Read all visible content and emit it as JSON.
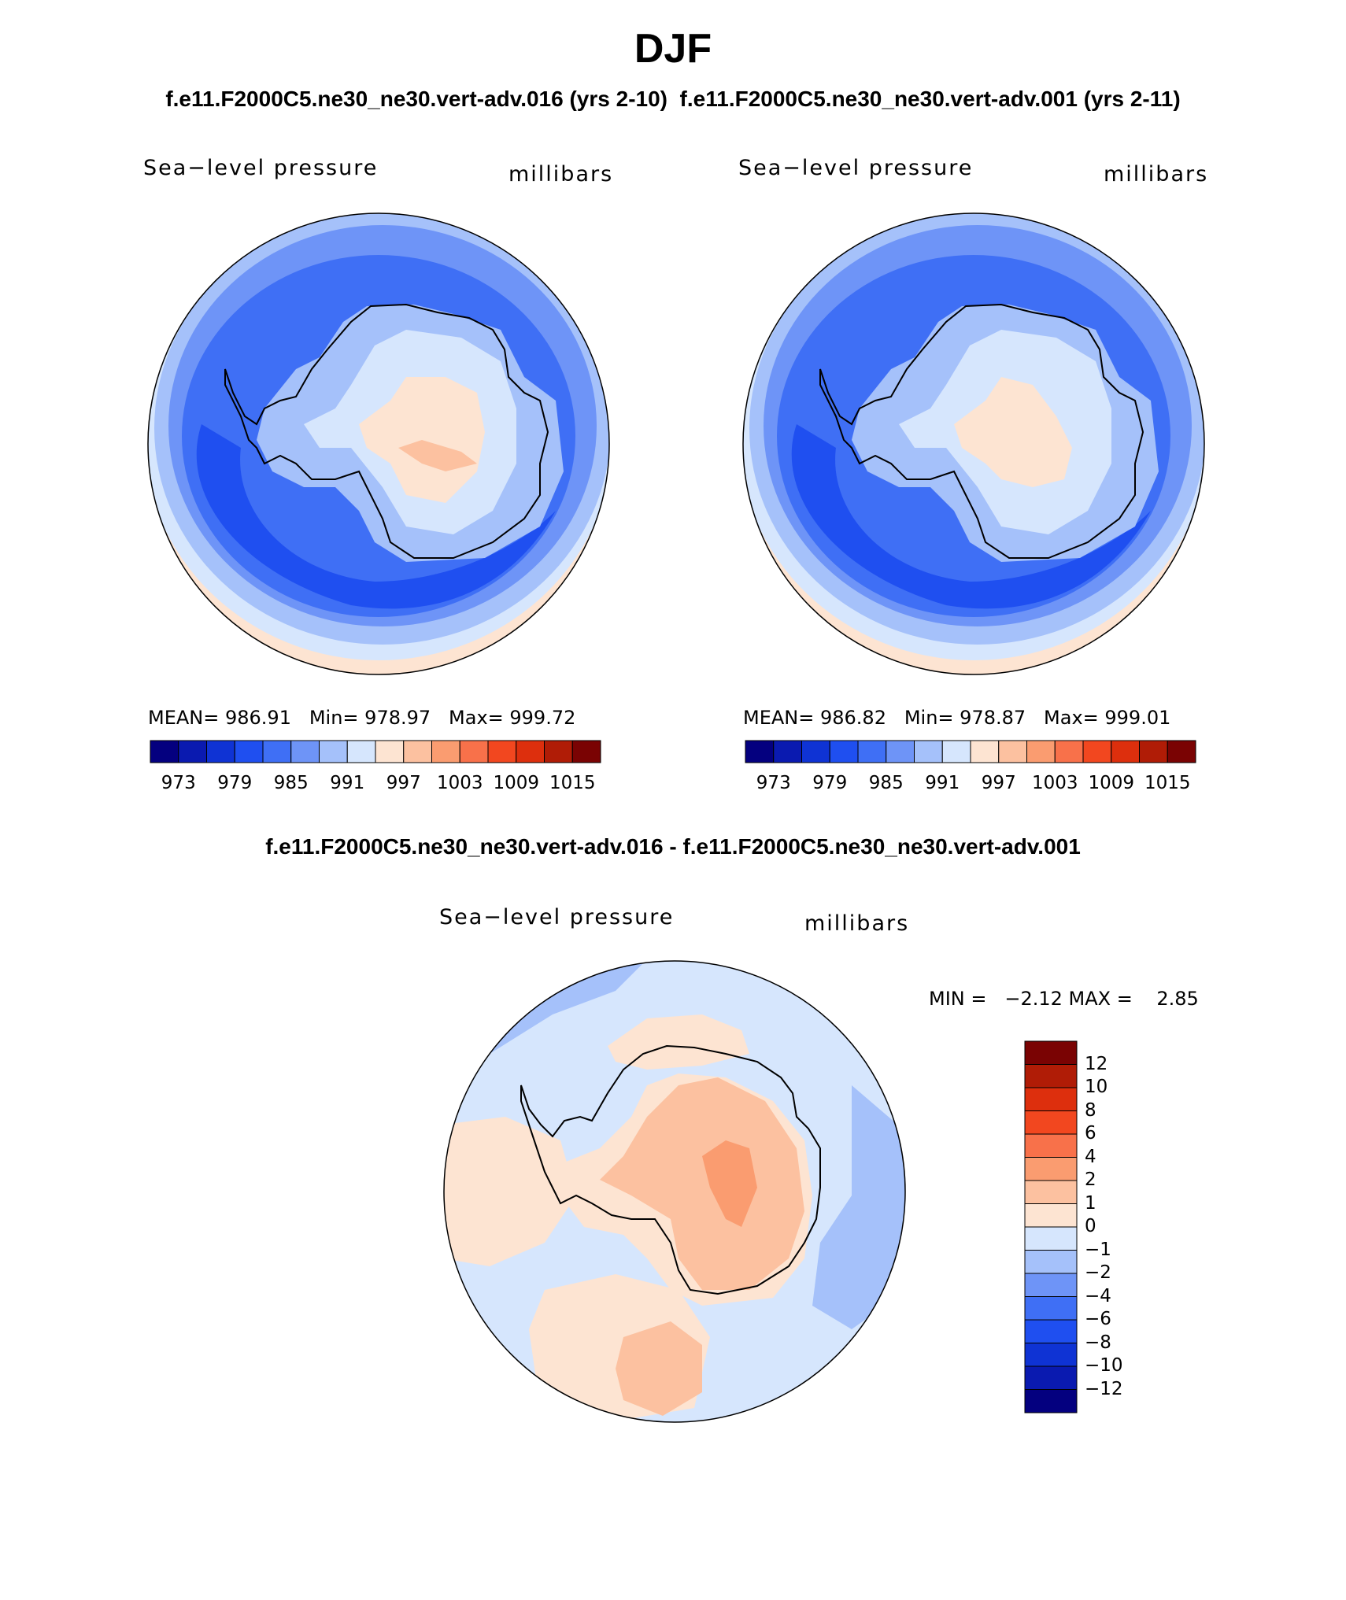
{
  "figure": {
    "title": "DJF",
    "pair_title": "f.e11.F2000C5.ne30_ne30.vert-adv.016 (yrs 2-10)  f.e11.F2000C5.ne30_ne30.vert-adv.001 (yrs 2-11)",
    "diff_title": "f.e11.F2000C5.ne30_ne30.vert-adv.016 - f.e11.F2000C5.ne30_ne30.vert-adv.001"
  },
  "panels": [
    {
      "variable": "Sea−level pressure",
      "units": "millibars",
      "stats_text": "MEAN= 986.91   Min= 978.97   Max= 999.72",
      "mean": 986.91,
      "min": 978.97,
      "max": 999.72
    },
    {
      "variable": "Sea−level pressure",
      "units": "millibars",
      "stats_text": "MEAN= 986.82   Min= 978.87   Max= 999.01",
      "mean": 986.82,
      "min": 978.87,
      "max": 999.01
    }
  ],
  "diff_panel": {
    "variable": "Sea−level pressure",
    "units": "millibars",
    "stats_text": "MIN =   −2.12 MAX =    2.85",
    "min": -2.12,
    "max": 2.85
  },
  "colorbars": {
    "absolute": {
      "labels": [
        "973",
        "979",
        "985",
        "991",
        "997",
        "1003",
        "1009",
        "1015"
      ],
      "colors": [
        "#04007f",
        "#0a1ab0",
        "#0f33d4",
        "#1f4ff0",
        "#3f6ff5",
        "#6e94f7",
        "#a5c1fa",
        "#d6e6fd",
        "#fde4d2",
        "#fcc1a0",
        "#fa9c70",
        "#f8714a",
        "#f2471f",
        "#dd2f0d",
        "#b01c06",
        "#7a0303"
      ]
    },
    "difference": {
      "labels": [
        "12",
        "10",
        "8",
        "6",
        "4",
        "2",
        "1",
        "0",
        "−1",
        "−2",
        "−4",
        "−6",
        "−8",
        "−10",
        "−12"
      ],
      "colors_top_to_bottom": [
        "#7a0303",
        "#b01c06",
        "#dd2f0d",
        "#f2471f",
        "#f8714a",
        "#fa9c70",
        "#fcc1a0",
        "#fde4d2",
        "#d6e6fd",
        "#a5c1fa",
        "#6e94f7",
        "#3f6ff5",
        "#1f4ff0",
        "#0f33d4",
        "#0a1ab0",
        "#04007f"
      ]
    }
  }
}
